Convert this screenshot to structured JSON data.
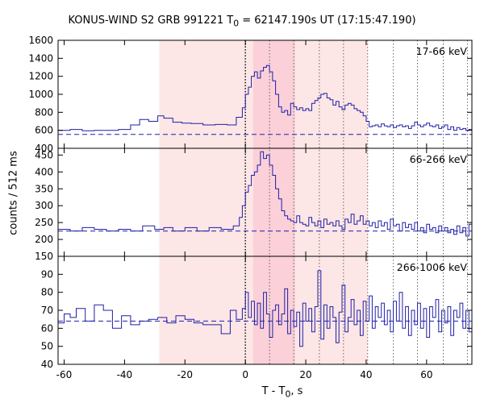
{
  "chart_data": {
    "type": "line",
    "title_parts": {
      "prefix": "KONUS-WIND S2 GRB 991221 T",
      "sub": "0",
      "suffix": " = 62147.190s UT (17:15:47.190)"
    },
    "xlabel_parts": {
      "prefix": "T - T",
      "sub": "0",
      "suffix": ", s"
    },
    "ylabel": "counts / 512 ms",
    "xlim": [
      -62,
      75
    ],
    "xticks": [
      -60,
      -40,
      -20,
      0,
      20,
      40,
      60
    ],
    "shaded_regions": [
      {
        "x": [
          -28.5,
          40.5
        ],
        "color": "#fde6e6"
      },
      {
        "x": [
          2.6,
          16.5
        ],
        "color": "#fbd0d8"
      }
    ],
    "dotted_lines": {
      "strong": [
        0
      ],
      "pink": [
        8,
        16,
        24.5,
        32.5,
        40.5
      ],
      "white": [
        49,
        57,
        65.5,
        73.5
      ]
    },
    "panels": [
      {
        "label": "17-66 keV",
        "ylim": [
          400,
          1600
        ],
        "yticks": [
          400,
          600,
          800,
          1000,
          1200,
          1400,
          1600
        ],
        "background": 555,
        "series": [
          [
            -62,
            600
          ],
          [
            -58,
            610
          ],
          [
            -54,
            595
          ],
          [
            -50,
            600
          ],
          [
            -46,
            600
          ],
          [
            -42,
            610
          ],
          [
            -38,
            660
          ],
          [
            -35,
            720
          ],
          [
            -32,
            700
          ],
          [
            -29,
            760
          ],
          [
            -27,
            735
          ],
          [
            -24,
            690
          ],
          [
            -21,
            680
          ],
          [
            -18,
            675
          ],
          [
            -14,
            660
          ],
          [
            -10,
            665
          ],
          [
            -6,
            660
          ],
          [
            -3,
            745
          ],
          [
            -1,
            850
          ],
          [
            0,
            1000
          ],
          [
            1,
            1080
          ],
          [
            2,
            1200
          ],
          [
            3,
            1250
          ],
          [
            4,
            1180
          ],
          [
            5,
            1260
          ],
          [
            6,
            1300
          ],
          [
            7,
            1320
          ],
          [
            8,
            1250
          ],
          [
            9,
            1150
          ],
          [
            10,
            1000
          ],
          [
            11,
            860
          ],
          [
            12,
            800
          ],
          [
            13,
            820
          ],
          [
            14,
            770
          ],
          [
            15,
            900
          ],
          [
            16,
            860
          ],
          [
            17,
            830
          ],
          [
            18,
            850
          ],
          [
            19,
            820
          ],
          [
            20,
            840
          ],
          [
            21,
            820
          ],
          [
            22,
            900
          ],
          [
            23,
            930
          ],
          [
            24,
            960
          ],
          [
            25,
            1000
          ],
          [
            26,
            1010
          ],
          [
            27,
            960
          ],
          [
            28,
            940
          ],
          [
            29,
            880
          ],
          [
            30,
            920
          ],
          [
            31,
            860
          ],
          [
            32,
            830
          ],
          [
            33,
            880
          ],
          [
            34,
            900
          ],
          [
            35,
            880
          ],
          [
            36,
            840
          ],
          [
            37,
            820
          ],
          [
            38,
            800
          ],
          [
            39,
            760
          ],
          [
            40,
            700
          ],
          [
            41,
            640
          ],
          [
            42,
            650
          ],
          [
            43,
            660
          ],
          [
            44,
            640
          ],
          [
            45,
            670
          ],
          [
            46,
            650
          ],
          [
            47,
            640
          ],
          [
            48,
            660
          ],
          [
            49,
            630
          ],
          [
            50,
            650
          ],
          [
            51,
            660
          ],
          [
            52,
            640
          ],
          [
            53,
            650
          ],
          [
            54,
            620
          ],
          [
            55,
            650
          ],
          [
            56,
            690
          ],
          [
            57,
            660
          ],
          [
            58,
            640
          ],
          [
            59,
            660
          ],
          [
            60,
            680
          ],
          [
            61,
            650
          ],
          [
            62,
            640
          ],
          [
            63,
            660
          ],
          [
            64,
            620
          ],
          [
            65,
            640
          ],
          [
            66,
            660
          ],
          [
            67,
            610
          ],
          [
            68,
            640
          ],
          [
            69,
            600
          ],
          [
            70,
            630
          ],
          [
            71,
            610
          ],
          [
            72,
            620
          ],
          [
            73,
            600
          ],
          [
            74,
            610
          ],
          [
            75,
            600
          ]
        ]
      },
      {
        "label": "66-266 keV",
        "ylim": [
          150,
          470
        ],
        "yticks": [
          150,
          200,
          250,
          300,
          350,
          400,
          450
        ],
        "background": 225,
        "series": [
          [
            -62,
            230
          ],
          [
            -58,
            225
          ],
          [
            -54,
            235
          ],
          [
            -50,
            230
          ],
          [
            -46,
            225
          ],
          [
            -42,
            230
          ],
          [
            -38,
            225
          ],
          [
            -34,
            240
          ],
          [
            -30,
            230
          ],
          [
            -27,
            235
          ],
          [
            -24,
            225
          ],
          [
            -20,
            235
          ],
          [
            -16,
            225
          ],
          [
            -12,
            235
          ],
          [
            -8,
            230
          ],
          [
            -4,
            240
          ],
          [
            -2,
            265
          ],
          [
            -1,
            300
          ],
          [
            0,
            340
          ],
          [
            1,
            360
          ],
          [
            2,
            390
          ],
          [
            3,
            400
          ],
          [
            4,
            420
          ],
          [
            5,
            460
          ],
          [
            6,
            440
          ],
          [
            7,
            450
          ],
          [
            8,
            420
          ],
          [
            9,
            390
          ],
          [
            10,
            350
          ],
          [
            11,
            320
          ],
          [
            12,
            285
          ],
          [
            13,
            270
          ],
          [
            14,
            260
          ],
          [
            15,
            255
          ],
          [
            16,
            250
          ],
          [
            17,
            270
          ],
          [
            18,
            250
          ],
          [
            19,
            245
          ],
          [
            20,
            240
          ],
          [
            21,
            265
          ],
          [
            22,
            250
          ],
          [
            23,
            240
          ],
          [
            24,
            255
          ],
          [
            25,
            235
          ],
          [
            26,
            260
          ],
          [
            27,
            245
          ],
          [
            28,
            250
          ],
          [
            29,
            240
          ],
          [
            30,
            255
          ],
          [
            31,
            240
          ],
          [
            32,
            230
          ],
          [
            33,
            260
          ],
          [
            34,
            250
          ],
          [
            35,
            275
          ],
          [
            36,
            245
          ],
          [
            37,
            255
          ],
          [
            38,
            270
          ],
          [
            39,
            245
          ],
          [
            40,
            255
          ],
          [
            41,
            240
          ],
          [
            42,
            250
          ],
          [
            43,
            235
          ],
          [
            44,
            255
          ],
          [
            45,
            240
          ],
          [
            46,
            250
          ],
          [
            47,
            230
          ],
          [
            48,
            260
          ],
          [
            49,
            240
          ],
          [
            50,
            245
          ],
          [
            51,
            225
          ],
          [
            52,
            250
          ],
          [
            53,
            235
          ],
          [
            54,
            245
          ],
          [
            55,
            230
          ],
          [
            56,
            250
          ],
          [
            57,
            225
          ],
          [
            58,
            235
          ],
          [
            59,
            220
          ],
          [
            60,
            245
          ],
          [
            61,
            230
          ],
          [
            62,
            235
          ],
          [
            63,
            220
          ],
          [
            64,
            240
          ],
          [
            65,
            225
          ],
          [
            66,
            235
          ],
          [
            67,
            220
          ],
          [
            68,
            230
          ],
          [
            69,
            215
          ],
          [
            70,
            240
          ],
          [
            71,
            220
          ],
          [
            72,
            235
          ],
          [
            73,
            210
          ],
          [
            74,
            245
          ],
          [
            75,
            220
          ]
        ]
      },
      {
        "label": "266-1006 keV",
        "ylim": [
          40,
          100
        ],
        "yticks": [
          40,
          50,
          60,
          70,
          80,
          90
        ],
        "background": 64,
        "series": [
          [
            -62,
            63
          ],
          [
            -60,
            68
          ],
          [
            -58,
            66
          ],
          [
            -56,
            71
          ],
          [
            -53,
            64
          ],
          [
            -50,
            73
          ],
          [
            -47,
            70
          ],
          [
            -44,
            60
          ],
          [
            -41,
            67
          ],
          [
            -38,
            62
          ],
          [
            -35,
            64
          ],
          [
            -32,
            65
          ],
          [
            -29,
            66
          ],
          [
            -26,
            63
          ],
          [
            -23,
            67
          ],
          [
            -20,
            65
          ],
          [
            -17,
            63
          ],
          [
            -14,
            62
          ],
          [
            -11,
            62
          ],
          [
            -8,
            57
          ],
          [
            -5,
            70
          ],
          [
            -3,
            65
          ],
          [
            -1,
            71
          ],
          [
            0,
            80
          ],
          [
            1,
            66
          ],
          [
            2,
            75
          ],
          [
            3,
            62
          ],
          [
            4,
            74
          ],
          [
            5,
            60
          ],
          [
            6,
            80
          ],
          [
            7,
            68
          ],
          [
            8,
            55
          ],
          [
            9,
            70
          ],
          [
            10,
            73
          ],
          [
            11,
            62
          ],
          [
            12,
            68
          ],
          [
            13,
            82
          ],
          [
            14,
            57
          ],
          [
            15,
            70
          ],
          [
            16,
            61
          ],
          [
            17,
            69
          ],
          [
            18,
            50
          ],
          [
            19,
            74
          ],
          [
            20,
            64
          ],
          [
            21,
            71
          ],
          [
            22,
            58
          ],
          [
            23,
            72
          ],
          [
            24,
            92
          ],
          [
            25,
            54
          ],
          [
            26,
            73
          ],
          [
            27,
            60
          ],
          [
            28,
            72
          ],
          [
            29,
            66
          ],
          [
            30,
            52
          ],
          [
            31,
            69
          ],
          [
            32,
            84
          ],
          [
            33,
            58
          ],
          [
            34,
            66
          ],
          [
            35,
            76
          ],
          [
            36,
            62
          ],
          [
            37,
            70
          ],
          [
            38,
            56
          ],
          [
            39,
            75
          ],
          [
            40,
            64
          ],
          [
            41,
            78
          ],
          [
            42,
            60
          ],
          [
            43,
            72
          ],
          [
            44,
            66
          ],
          [
            45,
            74
          ],
          [
            46,
            62
          ],
          [
            47,
            70
          ],
          [
            48,
            58
          ],
          [
            49,
            75
          ],
          [
            50,
            64
          ],
          [
            51,
            80
          ],
          [
            52,
            60
          ],
          [
            53,
            72
          ],
          [
            54,
            56
          ],
          [
            55,
            70
          ],
          [
            56,
            62
          ],
          [
            57,
            74
          ],
          [
            58,
            60
          ],
          [
            59,
            71
          ],
          [
            60,
            55
          ],
          [
            61,
            72
          ],
          [
            62,
            66
          ],
          [
            63,
            76
          ],
          [
            64,
            58
          ],
          [
            65,
            70
          ],
          [
            66,
            63
          ],
          [
            67,
            72
          ],
          [
            68,
            56
          ],
          [
            69,
            70
          ],
          [
            70,
            66
          ],
          [
            71,
            74
          ],
          [
            72,
            60
          ],
          [
            73,
            70
          ],
          [
            74,
            58
          ],
          [
            75,
            68
          ]
        ]
      }
    ],
    "colors": {
      "series": "#1f1fa8",
      "background_line": "#1f1fa8",
      "axis": "#000000"
    }
  }
}
